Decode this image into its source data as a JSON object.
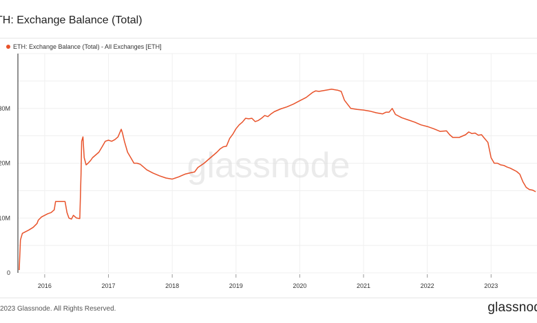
{
  "header": {
    "title": "TH: Exchange Balance (Total)"
  },
  "legend": {
    "label": "ETH: Exchange Balance (Total) - All Exchanges [ETH]",
    "color": "#e8522a"
  },
  "watermark": "glassnode",
  "footer": {
    "copyright": "2023 Glassnode. All Rights Reserved.",
    "brand": "glassnod"
  },
  "chart_data": {
    "type": "line",
    "title": "TH: Exchange Balance (Total)",
    "xlabel": "",
    "ylabel": "",
    "xlim": [
      2015.58,
      2023.72
    ],
    "ylim": [
      0,
      40000000
    ],
    "y_ticks": [
      {
        "value": 0,
        "label": "0"
      },
      {
        "value": 10000000,
        "label": "10M"
      },
      {
        "value": 20000000,
        "label": "20M"
      },
      {
        "value": 30000000,
        "label": "30M"
      }
    ],
    "x_ticks": [
      {
        "value": 2016,
        "label": "2016"
      },
      {
        "value": 2017,
        "label": "2017"
      },
      {
        "value": 2018,
        "label": "2018"
      },
      {
        "value": 2019,
        "label": "2019"
      },
      {
        "value": 2020,
        "label": "2020"
      },
      {
        "value": 2021,
        "label": "2021"
      },
      {
        "value": 2022,
        "label": "2022"
      },
      {
        "value": 2023,
        "label": "2023"
      }
    ],
    "grid": true,
    "legend_position": "top-left",
    "series": [
      {
        "name": "ETH: Exchange Balance (Total) - All Exchanges [ETH]",
        "color": "#e8522a",
        "x": [
          2015.6,
          2015.62,
          2015.65,
          2015.7,
          2015.75,
          2015.82,
          2015.88,
          2015.9,
          2015.95,
          2016.0,
          2016.05,
          2016.1,
          2016.15,
          2016.17,
          2016.22,
          2016.32,
          2016.35,
          2016.38,
          2016.42,
          2016.45,
          2016.5,
          2016.55,
          2016.57,
          2016.58,
          2016.6,
          2016.62,
          2016.65,
          2016.68,
          2016.72,
          2016.75,
          2016.8,
          2016.85,
          2016.9,
          2016.95,
          2017.0,
          2017.05,
          2017.1,
          2017.15,
          2017.2,
          2017.22,
          2017.25,
          2017.3,
          2017.35,
          2017.4,
          2017.45,
          2017.5,
          2017.55,
          2017.6,
          2017.7,
          2017.8,
          2017.9,
          2018.0,
          2018.1,
          2018.2,
          2018.3,
          2018.35,
          2018.4,
          2018.5,
          2018.6,
          2018.65,
          2018.7,
          2018.75,
          2018.8,
          2018.85,
          2018.9,
          2018.95,
          2019.0,
          2019.05,
          2019.1,
          2019.15,
          2019.2,
          2019.25,
          2019.3,
          2019.35,
          2019.4,
          2019.45,
          2019.5,
          2019.55,
          2019.6,
          2019.7,
          2019.8,
          2019.9,
          2020.0,
          2020.1,
          2020.2,
          2020.25,
          2020.3,
          2020.4,
          2020.5,
          2020.55,
          2020.6,
          2020.65,
          2020.7,
          2020.8,
          2020.9,
          2021.0,
          2021.1,
          2021.2,
          2021.3,
          2021.35,
          2021.4,
          2021.45,
          2021.5,
          2021.6,
          2021.7,
          2021.8,
          2021.9,
          2022.0,
          2022.1,
          2022.2,
          2022.3,
          2022.35,
          2022.4,
          2022.5,
          2022.6,
          2022.65,
          2022.7,
          2022.75,
          2022.8,
          2022.85,
          2022.9,
          2022.95,
          2023.0,
          2023.05,
          2023.1,
          2023.15,
          2023.2,
          2023.25,
          2023.3,
          2023.35,
          2023.4,
          2023.45,
          2023.5,
          2023.55,
          2023.6,
          2023.65,
          2023.7
        ],
        "values": [
          500000,
          6000000,
          7200000,
          7500000,
          7800000,
          8300000,
          9000000,
          9600000,
          10200000,
          10500000,
          10800000,
          11000000,
          11500000,
          13000000,
          13000000,
          13000000,
          11000000,
          10000000,
          9800000,
          10500000,
          10000000,
          9900000,
          18000000,
          24000000,
          24800000,
          21000000,
          19700000,
          20000000,
          20500000,
          21000000,
          21500000,
          22000000,
          23000000,
          24000000,
          24200000,
          24000000,
          24300000,
          24800000,
          26200000,
          25500000,
          24000000,
          22000000,
          21000000,
          20000000,
          20000000,
          19800000,
          19300000,
          18800000,
          18200000,
          17700000,
          17300000,
          17100000,
          17500000,
          18000000,
          18300000,
          18400000,
          19200000,
          20000000,
          21000000,
          21500000,
          22000000,
          22600000,
          23000000,
          23100000,
          24500000,
          25300000,
          26300000,
          27000000,
          27500000,
          28200000,
          28100000,
          28200000,
          27600000,
          27800000,
          28200000,
          28700000,
          28500000,
          29000000,
          29400000,
          29900000,
          30300000,
          30800000,
          31400000,
          32000000,
          32900000,
          33200000,
          33100000,
          33300000,
          33500000,
          33400000,
          33300000,
          33100000,
          31500000,
          30000000,
          29800000,
          29700000,
          29500000,
          29200000,
          29000000,
          29300000,
          29300000,
          30000000,
          28900000,
          28300000,
          27900000,
          27500000,
          27000000,
          26700000,
          26300000,
          25800000,
          25900000,
          25200000,
          24700000,
          24700000,
          25200000,
          25700000,
          25400000,
          25500000,
          25100000,
          25200000,
          24500000,
          23800000,
          21000000,
          20000000,
          20000000,
          19700000,
          19600000,
          19300000,
          19100000,
          18800000,
          18500000,
          18000000,
          16600000,
          15600000,
          15200000,
          15100000,
          14800000
        ]
      }
    ]
  }
}
